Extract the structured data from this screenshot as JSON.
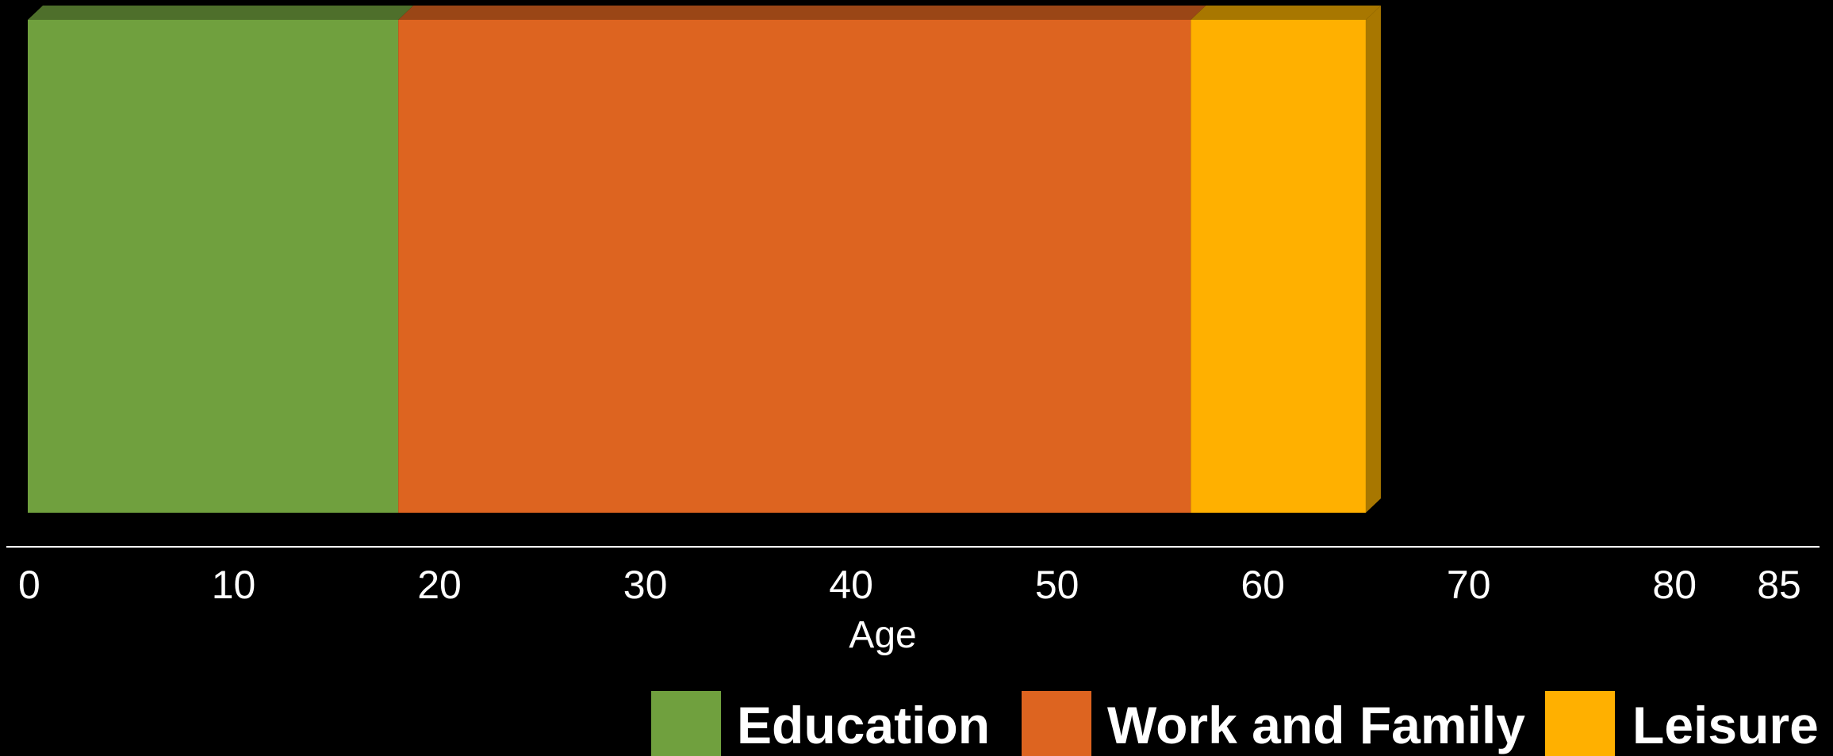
{
  "chart_data": {
    "type": "bar",
    "orientation": "horizontal-stacked",
    "segments": [
      {
        "name": "Education",
        "start": 0,
        "end": 18,
        "color": "#70A03E",
        "top_color": "#4E6F2B",
        "side_color": "#4E6F2B"
      },
      {
        "name": "Work and Family",
        "start": 18,
        "end": 56.5,
        "color": "#DD6420",
        "top_color": "#9A4616",
        "side_color": "#9A4616"
      },
      {
        "name": "Leisure",
        "start": 56.5,
        "end": 65,
        "color": "#FFB000",
        "top_color": "#A87700",
        "side_color": "#A87700"
      }
    ],
    "xlabel": "Age",
    "xticks": [
      0,
      10,
      20,
      30,
      40,
      50,
      60,
      70,
      80,
      85
    ],
    "xlim": [
      0,
      85
    ],
    "legend": [
      "Education",
      "Work and Family",
      "Leisure"
    ],
    "legend_position": "bottom-right",
    "grid": false
  }
}
